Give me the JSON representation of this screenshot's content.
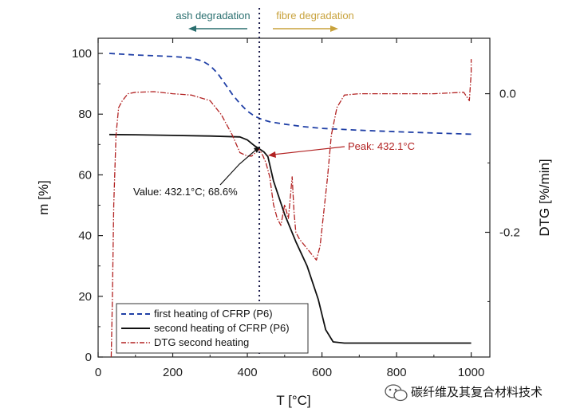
{
  "chart_data": {
    "type": "line",
    "xlabel": "T [°C]",
    "ylabel_left": "m [%]",
    "ylabel_right": "DTG [%/min]",
    "xlim": [
      0,
      1050
    ],
    "ylim_left": [
      0,
      105
    ],
    "ylim_right": [
      -0.38,
      0.08
    ],
    "x_ticks": [
      0,
      200,
      400,
      600,
      800,
      1000
    ],
    "y_ticks_left": [
      0,
      20,
      40,
      60,
      80,
      100
    ],
    "y_ticks_right": [
      0.0,
      -0.2
    ],
    "y_tick_labels_right": [
      "0.0",
      "-0.2"
    ],
    "grid": false,
    "legend_position": "bottom-left",
    "colors": {
      "first": "#1f3fa6",
      "second": "#111111",
      "dtg": "#b22222",
      "ash": "#2a6f6f",
      "fibre": "#c8a23c",
      "vline": "#1a1a4a"
    },
    "series": [
      {
        "name": "first heating of CFRP (P6)",
        "axis": "left",
        "style": "dashed",
        "x": [
          30,
          100,
          200,
          250,
          280,
          300,
          320,
          340,
          360,
          380,
          400,
          420,
          440,
          460,
          500,
          550,
          600,
          700,
          800,
          900,
          1000
        ],
        "y": [
          100,
          99.5,
          99,
          98.5,
          97.5,
          96,
          93.5,
          90,
          86.5,
          83.5,
          81,
          79.3,
          78.2,
          77.5,
          76.7,
          75.9,
          75.3,
          74.7,
          74.2,
          73.8,
          73.4
        ]
      },
      {
        "name": "second heating of CFRP (P6)",
        "axis": "left",
        "style": "solid",
        "x": [
          30,
          100,
          200,
          300,
          380,
          400,
          420,
          432,
          445,
          455,
          470,
          500,
          530,
          560,
          590,
          610,
          630,
          660,
          700,
          800,
          900,
          1000
        ],
        "y": [
          73.3,
          73.2,
          73,
          72.8,
          72.5,
          71.5,
          69.5,
          68.6,
          67.5,
          66,
          58,
          47,
          38,
          30,
          19,
          9,
          5,
          4.6,
          4.6,
          4.6,
          4.6,
          4.6
        ]
      },
      {
        "name": "DTG second heating",
        "axis": "right",
        "style": "dashdot",
        "x": [
          35,
          38,
          42,
          48,
          55,
          65,
          80,
          100,
          150,
          200,
          250,
          300,
          330,
          360,
          380,
          400,
          412,
          420,
          432,
          442,
          450,
          460,
          470,
          480,
          490,
          500,
          510,
          520,
          525,
          530,
          540,
          555,
          570,
          585,
          595,
          605,
          615,
          625,
          640,
          660,
          700,
          800,
          900,
          980,
          995,
          1000,
          1000
        ],
        "y": [
          -0.38,
          -0.3,
          -0.16,
          -0.06,
          -0.02,
          -0.01,
          0.0,
          0.002,
          0.003,
          0.0,
          -0.002,
          -0.01,
          -0.03,
          -0.06,
          -0.085,
          -0.09,
          -0.09,
          -0.086,
          -0.08,
          -0.09,
          -0.1,
          -0.12,
          -0.16,
          -0.18,
          -0.19,
          -0.16,
          -0.18,
          -0.12,
          -0.17,
          -0.2,
          -0.21,
          -0.22,
          -0.23,
          -0.24,
          -0.22,
          -0.17,
          -0.12,
          -0.06,
          -0.02,
          -0.002,
          0.0,
          0.0,
          0.0,
          0.002,
          -0.01,
          0.03,
          0.05
        ]
      }
    ],
    "vertical_line": {
      "x": 432.1,
      "style": "dotted"
    },
    "annotations": {
      "ash_label": "ash degradation",
      "fibre_label": "fibre degradation",
      "peak_label": "Peak: 432.1°C",
      "value_label": "Value: 432.1°C; 68.6%",
      "value_point": {
        "x": 432.1,
        "y": 68.6
      },
      "peak_point": {
        "x": 432.1,
        "y": -0.08
      }
    }
  },
  "watermark": {
    "text": "碳纤维及其复合材料技术"
  }
}
